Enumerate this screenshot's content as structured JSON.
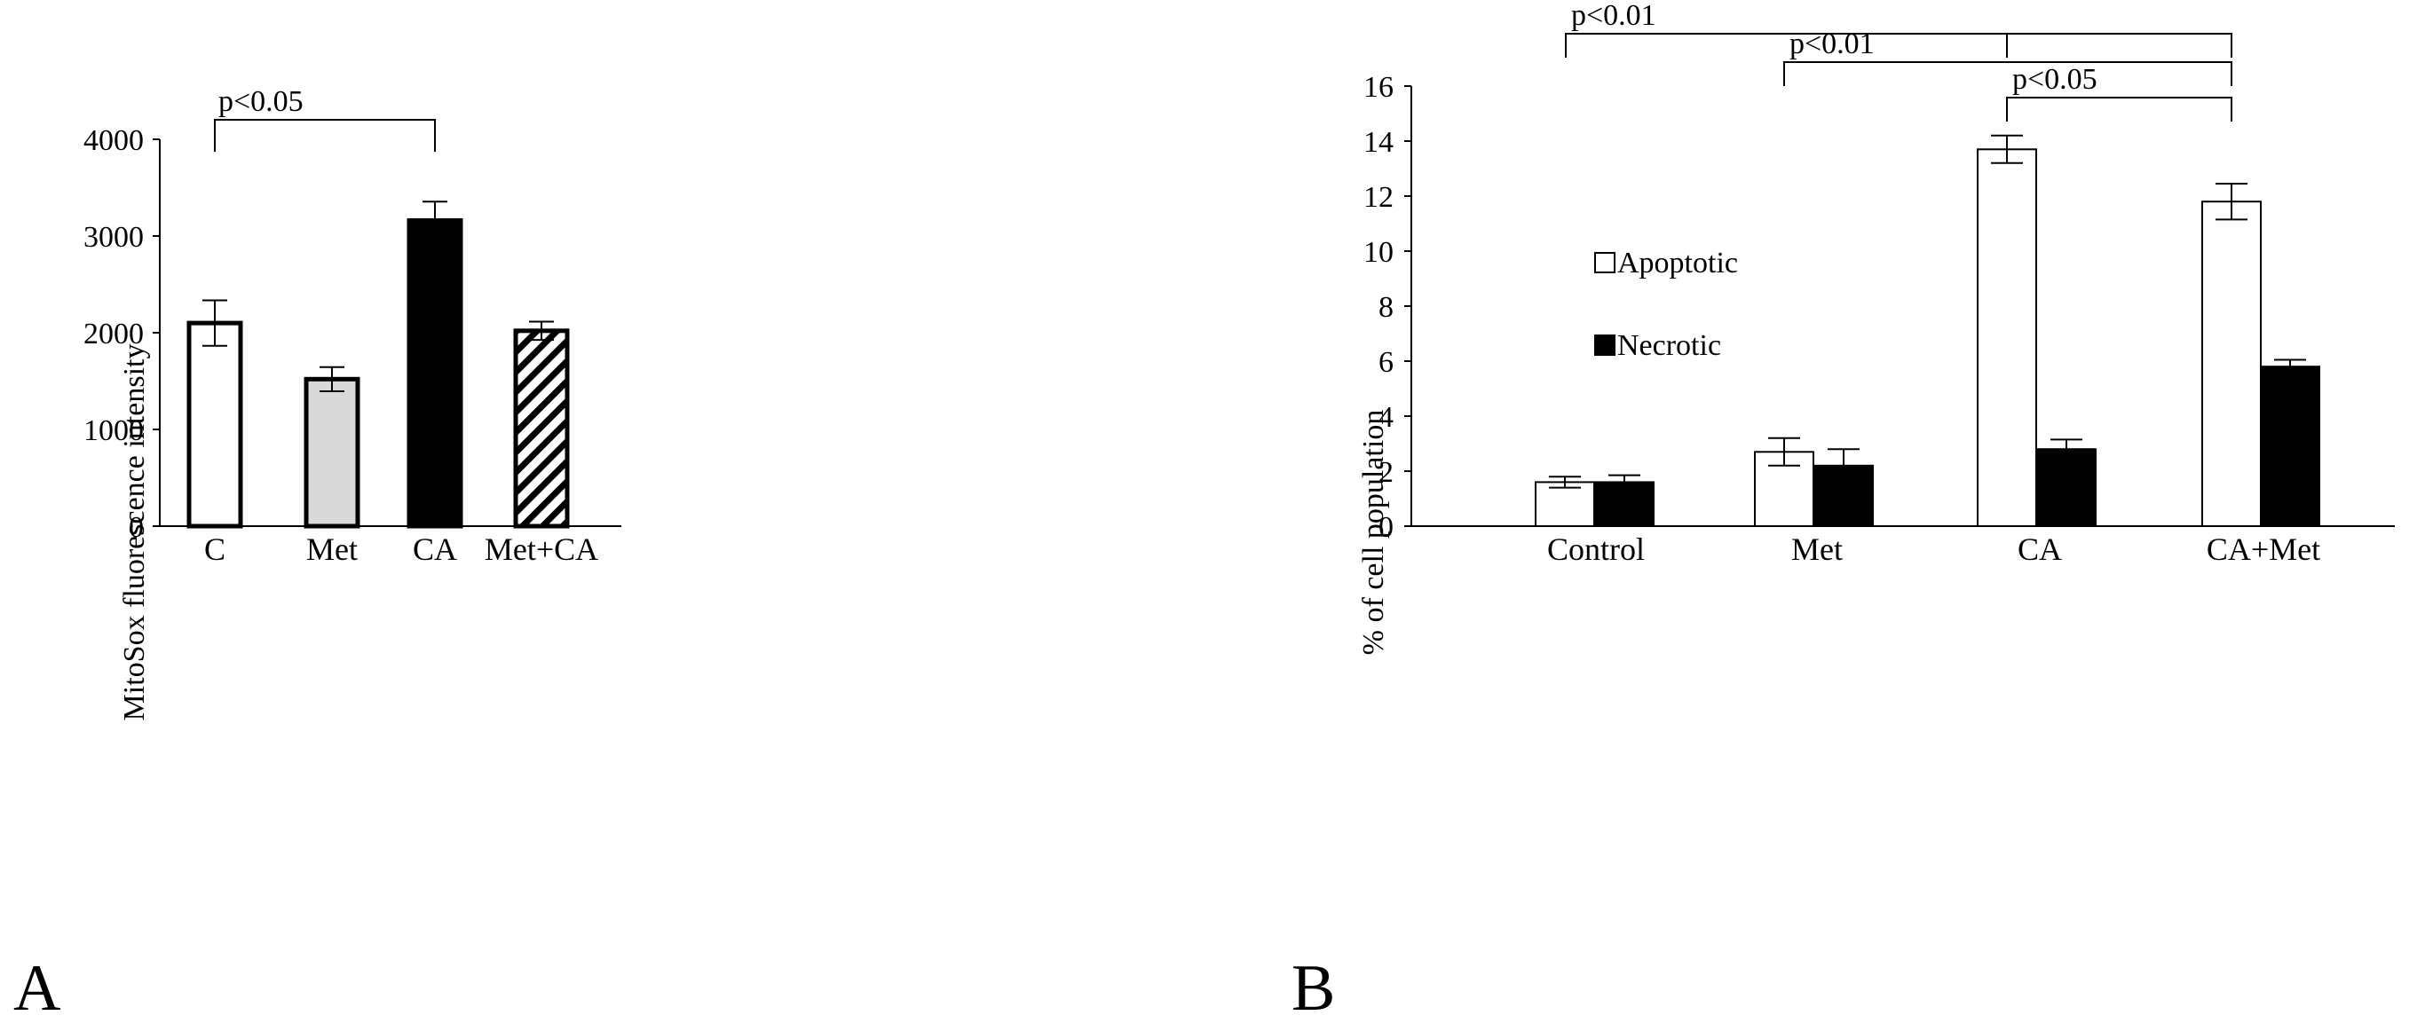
{
  "chart_data": [
    {
      "panel_label": "A",
      "type": "bar",
      "ylabel": "MitoSox fluorescence intensity",
      "xlabel": "",
      "ylim": [
        0,
        4000
      ],
      "yticks": [
        0,
        1000,
        2000,
        3000,
        4000
      ],
      "categories": [
        "C",
        "Met",
        "CA",
        "Met+CA"
      ],
      "values": [
        2100,
        1520,
        3160,
        2020
      ],
      "errors": [
        235,
        125,
        195,
        95
      ],
      "fill_styles": [
        "white",
        "light-gray",
        "black",
        "diagonal-hatch"
      ],
      "colors": [
        "#ffffff",
        "#d9d9d9",
        "#000000",
        "#000000"
      ],
      "annotations": [
        {
          "text": "p<0.05",
          "from": "C",
          "to": "CA"
        }
      ]
    },
    {
      "panel_label": "B",
      "type": "bar",
      "ylabel": "% of cell population",
      "xlabel": "",
      "ylim": [
        0,
        16
      ],
      "yticks": [
        0,
        2,
        4,
        6,
        8,
        10,
        12,
        14,
        16
      ],
      "categories": [
        "Control",
        "Met",
        "CA",
        "CA+Met"
      ],
      "series": [
        {
          "name": "Apoptotic",
          "color": "#ffffff",
          "values": [
            1.6,
            2.7,
            13.7,
            11.8
          ],
          "errors": [
            0.2,
            0.5,
            0.5,
            0.65
          ]
        },
        {
          "name": "Necrotic",
          "color": "#000000",
          "values": [
            1.6,
            2.2,
            2.8,
            5.8
          ],
          "errors": [
            0.25,
            0.6,
            0.35,
            0.25
          ]
        }
      ],
      "legend_position": "upper-left",
      "annotations": [
        {
          "text": "p<0.01",
          "from": "Control",
          "to": "CA+Met",
          "level": 0
        },
        {
          "text": "p<0.01",
          "from": "Met",
          "to": "CA+Met",
          "level": 1
        },
        {
          "text": "p<0.05",
          "from": "CA",
          "to": "CA+Met",
          "level": 2
        }
      ]
    }
  ]
}
